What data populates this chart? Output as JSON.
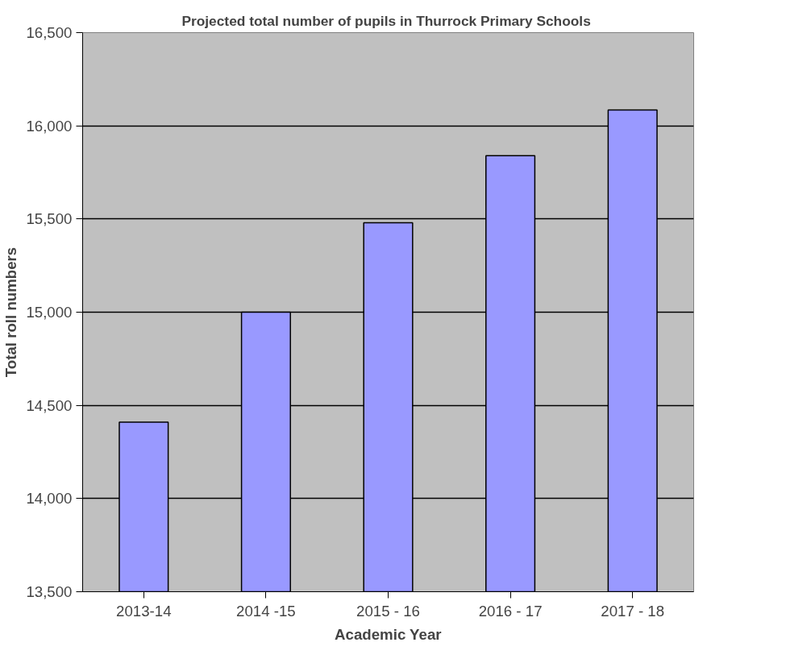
{
  "chart_data": {
    "type": "bar",
    "title": "Projected total  number of pupils in Thurrock Primary Schools",
    "xlabel": "Academic Year",
    "ylabel": "Total roll numbers",
    "categories": [
      "2013-14",
      "2014 -15",
      "2015 - 16",
      "2016 - 17",
      "2017 - 18"
    ],
    "values": [
      14410,
      15000,
      15480,
      15840,
      16085
    ],
    "color": "#9999ff",
    "ylim": [
      13500,
      16500
    ],
    "yticks": [
      {
        "value": 13500,
        "label": "13,500"
      },
      {
        "value": 14000,
        "label": "14,000"
      },
      {
        "value": 14500,
        "label": "14,500"
      },
      {
        "value": 15000,
        "label": "15,000"
      },
      {
        "value": 15500,
        "label": "15,500"
      },
      {
        "value": 16000,
        "label": "16,000"
      },
      {
        "value": 16500,
        "label": "16,500"
      }
    ],
    "grid": "y"
  }
}
